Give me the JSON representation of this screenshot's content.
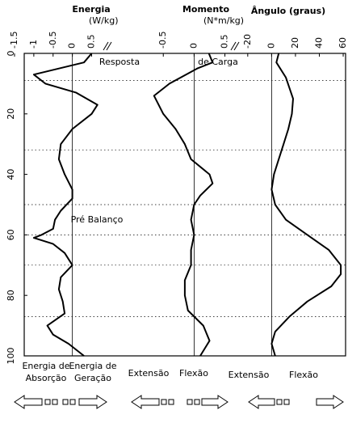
{
  "chart_data": [
    {
      "type": "line",
      "title": "Energia",
      "subtitle": "(W/kg)",
      "x": [
        0,
        3,
        7,
        10,
        13,
        17,
        20,
        25,
        30,
        35,
        40,
        45,
        48,
        52,
        55,
        58,
        60,
        61,
        63,
        66,
        70,
        74,
        78,
        82,
        86,
        90,
        93,
        96,
        100
      ],
      "values": [
        0.5,
        0.3,
        -1.0,
        -0.7,
        0.1,
        0.65,
        0.5,
        0.0,
        -0.3,
        -0.35,
        -0.2,
        0.0,
        0.0,
        -0.3,
        -0.45,
        -0.5,
        -0.8,
        -1.0,
        -0.5,
        -0.2,
        0.0,
        -0.3,
        -0.35,
        -0.25,
        -0.2,
        -0.65,
        -0.5,
        -0.1,
        0.3
      ],
      "color": "#000000",
      "xlim": [
        0,
        100
      ],
      "xticks": [
        0,
        20,
        40,
        60,
        80,
        100
      ],
      "ylim": [
        -1.5,
        0.95
      ],
      "yticks": [
        -1.5,
        -1,
        -0.5,
        0,
        0.5
      ],
      "events": [
        9,
        32,
        50,
        60,
        70,
        87
      ],
      "labels": [
        [
          "Energia de",
          "Absorção"
        ],
        [
          "Energia de",
          "Geração"
        ]
      ],
      "annotations": [
        "Resposta",
        "Pré Balanço"
      ]
    },
    {
      "type": "line",
      "title": "Momento",
      "subtitle": "(N*m/kg)",
      "x": [
        0,
        3,
        5,
        10,
        14,
        20,
        25,
        30,
        35,
        40,
        43,
        47,
        50,
        55,
        60,
        65,
        70,
        75,
        80,
        85,
        90,
        95,
        100
      ],
      "values": [
        0.24,
        0.3,
        0.05,
        -0.4,
        -0.65,
        -0.5,
        -0.3,
        -0.15,
        -0.05,
        0.25,
        0.3,
        0.1,
        0.0,
        -0.05,
        0.0,
        -0.05,
        -0.05,
        -0.15,
        -0.15,
        -0.1,
        0.15,
        0.25,
        0.1
      ],
      "color": "#000000",
      "xlim": [
        0,
        100
      ],
      "ylim": [
        -1.25,
        0.65
      ],
      "yticks": [
        -0.5,
        0,
        0.5
      ],
      "labels": [
        [
          "Extensão"
        ],
        [
          "Flexão"
        ]
      ],
      "annotations": [
        "de Carga"
      ]
    },
    {
      "type": "line",
      "title": "Ângulo (graus)",
      "x": [
        0,
        3,
        8,
        15,
        20,
        25,
        30,
        35,
        40,
        45,
        50,
        55,
        60,
        65,
        70,
        73,
        77,
        82,
        87,
        92,
        96,
        100
      ],
      "values": [
        6,
        4,
        12,
        18,
        17,
        14,
        10,
        6,
        2,
        0,
        3,
        12,
        30,
        48,
        58,
        58,
        50,
        30,
        15,
        3,
        0,
        3
      ],
      "color": "#000000",
      "xlim": [
        0,
        100
      ],
      "ylim": [
        -28,
        62
      ],
      "yticks": [
        -20,
        0,
        20,
        40,
        60
      ],
      "labels": [
        [
          "Extensão"
        ],
        [
          "Flexão"
        ]
      ]
    }
  ]
}
